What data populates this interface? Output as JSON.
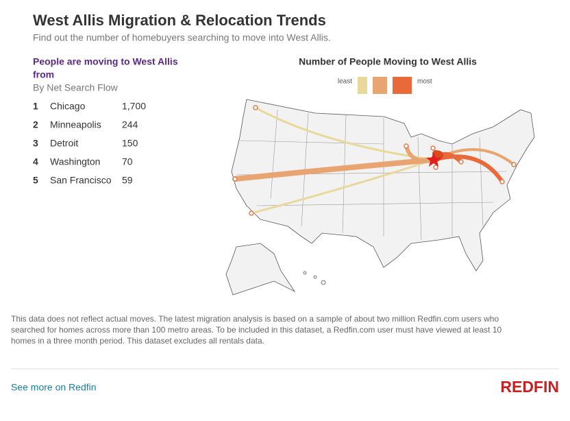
{
  "header": {
    "title": "West Allis Migration & Relocation Trends",
    "subtitle": "Find out the number of homebuyers searching to move into West Allis."
  },
  "list": {
    "heading_1": "People are moving to West Allis",
    "heading_2": "from",
    "subheading": "By Net Search Flow",
    "rows": [
      [
        1,
        "Chicago",
        "1,700"
      ],
      [
        2,
        "Minneapolis",
        "244"
      ],
      [
        3,
        "Detroit",
        "150"
      ],
      [
        4,
        "Washington",
        "70"
      ],
      [
        5,
        "San Francisco",
        "59"
      ]
    ]
  },
  "map": {
    "title": "Number of People Moving to West Allis",
    "legend_low": "least",
    "legend_high": "most"
  },
  "footer": {
    "disclaimer_1": "This data does not reflect actual moves. The latest migration analysis is based on a sample of about two million Redfin.com users who",
    "disclaimer_2": "searched for homes across more than 100 metro areas. To be included in this dataset, a Redfin.com user must have viewed at least 10",
    "disclaimer_3": "homes in a three month period. This dataset excludes all rentals data.",
    "link": "See more on Redfin",
    "logo": "REDFIN"
  }
}
